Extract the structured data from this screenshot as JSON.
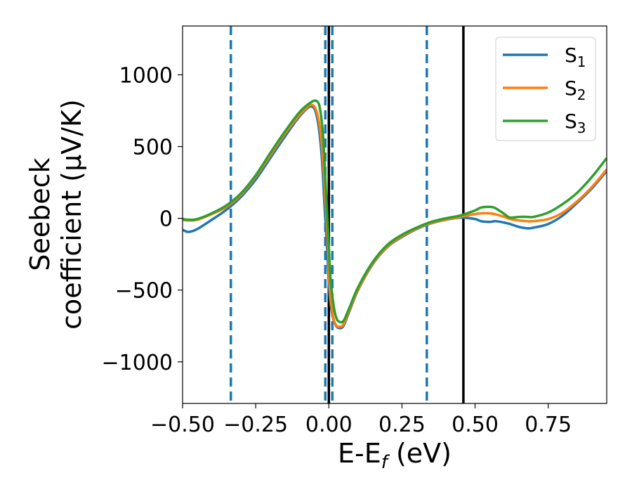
{
  "chart_data": {
    "type": "line",
    "xlabel": "E-E$_f$ (eV)",
    "xlabel_parts": {
      "main": "E-E",
      "sub": "f",
      "tail": " (eV)"
    },
    "ylabel": "Seebeck coefficient (μV/K)",
    "ylabel_lines": {
      "line1": "Seebeck",
      "line2": "coefficient  (μV/K)"
    },
    "xlim": [
      -0.5,
      0.95
    ],
    "ylim": [
      -1290,
      1340
    ],
    "x_ticks": [
      -0.5,
      -0.25,
      0.0,
      0.25,
      0.5,
      0.75
    ],
    "x_tick_labels": [
      "−0.50",
      "−0.25",
      "0.00",
      "0.25",
      "0.50",
      "0.75"
    ],
    "y_ticks": [
      -1000,
      -500,
      0,
      500,
      1000
    ],
    "y_tick_labels": [
      "−1000",
      "−500",
      "0",
      "500",
      "1000"
    ],
    "grid": false,
    "legend_placement": "top-right",
    "vlines_dashed": {
      "color": "#1f77b4",
      "x": [
        -0.335,
        -0.012,
        0.012,
        0.335
      ]
    },
    "vlines_solid": {
      "color": "#000000",
      "x": [
        0.0,
        0.46
      ]
    },
    "series": [
      {
        "name": "S1",
        "name_main": "S",
        "name_sub": "1",
        "color": "#1f77b4",
        "x": [
          -0.5,
          -0.48,
          -0.45,
          -0.4,
          -0.35,
          -0.3,
          -0.25,
          -0.2,
          -0.15,
          -0.1,
          -0.06,
          -0.04,
          -0.025,
          -0.015,
          -0.005,
          0.0,
          0.005,
          0.015,
          0.025,
          0.035,
          0.05,
          0.07,
          0.1,
          0.15,
          0.2,
          0.25,
          0.3,
          0.35,
          0.4,
          0.45,
          0.5,
          0.52,
          0.55,
          0.57,
          0.6,
          0.62,
          0.65,
          0.68,
          0.7,
          0.75,
          0.8,
          0.85,
          0.9,
          0.95
        ],
        "y": [
          -80,
          -95,
          -75,
          -10,
          60,
          150,
          270,
          420,
          570,
          710,
          780,
          700,
          450,
          100,
          -250,
          -450,
          -580,
          -700,
          -750,
          -765,
          -750,
          -650,
          -500,
          -320,
          -200,
          -130,
          -75,
          -35,
          -10,
          5,
          -5,
          -20,
          -25,
          -20,
          -30,
          -40,
          -60,
          -70,
          -65,
          -40,
          20,
          110,
          210,
          330
        ]
      },
      {
        "name": "S2",
        "name_main": "S",
        "name_sub": "2",
        "color": "#ff7f0e",
        "x": [
          -0.5,
          -0.48,
          -0.45,
          -0.4,
          -0.35,
          -0.3,
          -0.25,
          -0.2,
          -0.15,
          -0.1,
          -0.06,
          -0.04,
          -0.025,
          -0.015,
          -0.005,
          0.0,
          0.005,
          0.015,
          0.025,
          0.035,
          0.05,
          0.07,
          0.1,
          0.15,
          0.2,
          0.25,
          0.3,
          0.35,
          0.4,
          0.45,
          0.5,
          0.52,
          0.55,
          0.57,
          0.6,
          0.62,
          0.65,
          0.68,
          0.7,
          0.75,
          0.8,
          0.85,
          0.9,
          0.95
        ],
        "y": [
          -10,
          -15,
          -10,
          30,
          80,
          165,
          290,
          440,
          590,
          720,
          790,
          730,
          540,
          250,
          -100,
          -350,
          -530,
          -690,
          -745,
          -755,
          -740,
          -640,
          -495,
          -315,
          -195,
          -125,
          -72,
          -32,
          -8,
          10,
          30,
          35,
          35,
          28,
          10,
          -5,
          -15,
          -20,
          -20,
          -5,
          40,
          120,
          220,
          340
        ]
      },
      {
        "name": "S3",
        "name_main": "S",
        "name_sub": "3",
        "color": "#2ca02c",
        "x": [
          -0.5,
          -0.48,
          -0.45,
          -0.4,
          -0.35,
          -0.3,
          -0.25,
          -0.2,
          -0.15,
          -0.1,
          -0.06,
          -0.04,
          -0.03,
          -0.02,
          -0.01,
          0.0,
          0.005,
          0.015,
          0.025,
          0.035,
          0.05,
          0.07,
          0.1,
          0.15,
          0.2,
          0.25,
          0.3,
          0.35,
          0.4,
          0.45,
          0.5,
          0.52,
          0.55,
          0.57,
          0.6,
          0.62,
          0.65,
          0.68,
          0.7,
          0.75,
          0.8,
          0.85,
          0.9,
          0.95
        ],
        "y": [
          -5,
          -10,
          -5,
          35,
          90,
          175,
          300,
          455,
          605,
          740,
          810,
          815,
          760,
          580,
          200,
          -200,
          -400,
          -590,
          -690,
          -720,
          -715,
          -625,
          -480,
          -305,
          -185,
          -115,
          -65,
          -25,
          0,
          20,
          55,
          75,
          80,
          70,
          30,
          5,
          10,
          10,
          10,
          40,
          100,
          180,
          290,
          420
        ]
      }
    ]
  }
}
